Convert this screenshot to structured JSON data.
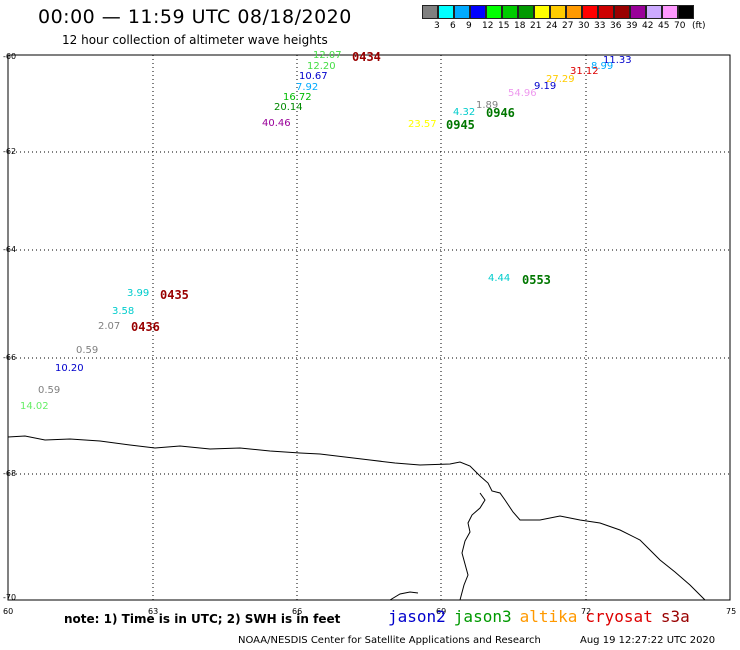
{
  "title": "00:00 — 11:59 UTC 08/18/2020",
  "subtitle": "12 hour collection of altimeter wave heights",
  "legend": {
    "colors": [
      "#808080",
      "#00ffff",
      "#00aaff",
      "#0000ff",
      "#00ff00",
      "#00cc00",
      "#009900",
      "#ffff00",
      "#ffcc00",
      "#ff9900",
      "#ff0000",
      "#cc0000",
      "#990000",
      "#990099",
      "#ccaaff",
      "#ff99ff",
      "#000000"
    ],
    "labels": [
      "3",
      "6",
      "9",
      "12",
      "15",
      "18",
      "21",
      "24",
      "27",
      "30",
      "33",
      "36",
      "39",
      "42",
      "45",
      "70"
    ],
    "unit": "(ft)"
  },
  "axes": {
    "y_ticks": [
      "-60",
      "-62",
      "-64",
      "-66",
      "-68",
      "-70"
    ],
    "x_ticks": [
      "60",
      "63",
      "66",
      "69",
      "72",
      "75"
    ]
  },
  "measurements": [
    {
      "text": "12.07",
      "color": "#44dd44"
    },
    {
      "text": "12.20",
      "color": "#44dd44"
    },
    {
      "text": "10.67",
      "color": "#0000cc"
    },
    {
      "text": "7.92",
      "color": "#00aaff"
    },
    {
      "text": "16.72",
      "color": "#00bb00"
    },
    {
      "text": "20.14",
      "color": "#008800"
    },
    {
      "text": "40.46",
      "color": "#990099"
    },
    {
      "text": "11.33",
      "color": "#0000cc"
    },
    {
      "text": "8.99",
      "color": "#00aaff"
    },
    {
      "text": "31.12",
      "color": "#dd0000"
    },
    {
      "text": "27.29",
      "color": "#ffcc00"
    },
    {
      "text": "9.19",
      "color": "#0000cc"
    },
    {
      "text": "54.96",
      "color": "#ee99ee"
    },
    {
      "text": "1.89",
      "color": "#808080"
    },
    {
      "text": "4.32",
      "color": "#00cccc"
    },
    {
      "text": "23.57",
      "color": "#ffff00"
    },
    {
      "text": "4.44",
      "color": "#00cccc"
    },
    {
      "text": "3.99",
      "color": "#00cccc"
    },
    {
      "text": "3.58",
      "color": "#00cccc"
    },
    {
      "text": "2.07",
      "color": "#808080"
    },
    {
      "text": "0.59",
      "color": "#808080"
    },
    {
      "text": "10.20",
      "color": "#0000cc"
    },
    {
      "text": "0.59",
      "color": "#808080"
    },
    {
      "text": "14.02",
      "color": "#66ee66"
    }
  ],
  "times": [
    {
      "text": "0434",
      "color": "#990000"
    },
    {
      "text": "0946",
      "color": "#007700"
    },
    {
      "text": "0945",
      "color": "#007700"
    },
    {
      "text": "0553",
      "color": "#007700"
    },
    {
      "text": "0435",
      "color": "#990000"
    },
    {
      "text": "0436",
      "color": "#990000"
    }
  ],
  "footer": {
    "note": "note: 1) Time is in UTC; 2) SWH is in feet",
    "satellites": [
      {
        "name": "jason2",
        "color": "#0000cc"
      },
      {
        "name": "jason3",
        "color": "#009900"
      },
      {
        "name": "altika",
        "color": "#ff9900"
      },
      {
        "name": "cryosat",
        "color": "#dd0000"
      },
      {
        "name": "s3a",
        "color": "#990000"
      }
    ],
    "credit": "NOAA/NESDIS Center for Satellite Applications and Research",
    "timestamp": "Aug 19 12:27:22 UTC 2020"
  }
}
